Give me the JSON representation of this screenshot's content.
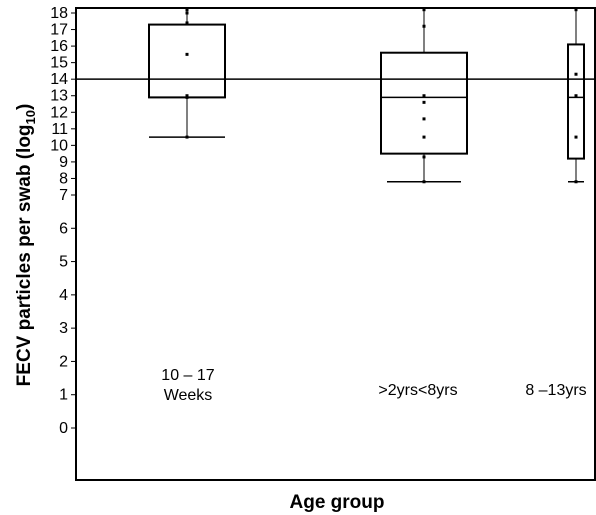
{
  "chart_data": {
    "type": "box",
    "xlabel": "Age group",
    "ylabel": "FECV particles per swab (log",
    "ylabel_sub": "10",
    "ylabel_close": ")",
    "yticks": [
      0,
      1,
      2,
      3,
      4,
      5,
      6,
      7,
      8,
      9,
      10,
      11,
      12,
      13,
      14,
      15,
      16,
      17,
      18
    ],
    "reference_line": 14,
    "grid": false,
    "groups": [
      {
        "label_lines": [
          "10 – 17",
          "Weeks"
        ],
        "whisker_low": 10.5,
        "q1": 12.9,
        "median": 12.9,
        "q3": 17.3,
        "whisker_high": 18.2,
        "points": [
          10.5,
          12.9,
          13.0,
          15.5,
          17.4,
          18.0,
          18.2
        ]
      },
      {
        "label_lines": [
          ">2yrs<8yrs"
        ],
        "whisker_low": 7.8,
        "q1": 9.5,
        "median": 12.9,
        "q3": 15.6,
        "whisker_high": 18.2,
        "points": [
          7.8,
          9.3,
          10.5,
          11.6,
          12.6,
          13.0,
          17.2,
          18.2
        ]
      },
      {
        "label_lines": [
          "8 –13yrs"
        ],
        "whisker_low": 7.8,
        "q1": 9.2,
        "median": 12.9,
        "q3": 16.1,
        "whisker_high": 18.2,
        "points": [
          7.8,
          10.5,
          13.0,
          14.3,
          18.2
        ]
      }
    ]
  }
}
